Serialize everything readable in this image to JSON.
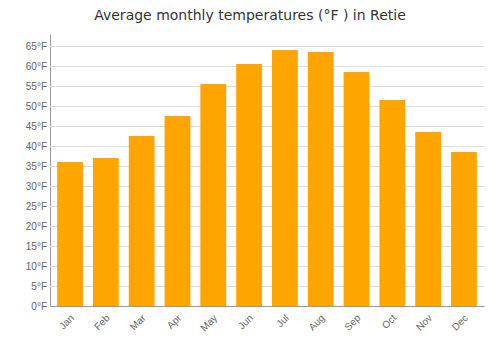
{
  "chart_data": {
    "type": "bar",
    "title": "Average monthly temperatures (°F ) in Retie",
    "categories": [
      "Jan",
      "Feb",
      "Mar",
      "Apr",
      "May",
      "Jun",
      "Jul",
      "Aug",
      "Sep",
      "Oct",
      "Nov",
      "Dec"
    ],
    "values": [
      36.0,
      37.0,
      42.5,
      47.5,
      55.5,
      60.5,
      64.0,
      63.5,
      58.5,
      51.5,
      43.5,
      38.5
    ],
    "color": "#FFA500",
    "ylim": [
      0,
      68
    ],
    "yticks": [
      {
        "value": 0,
        "label": "0°F"
      },
      {
        "value": 5,
        "label": "5°F"
      },
      {
        "value": 10,
        "label": "10°F"
      },
      {
        "value": 15,
        "label": "15°F"
      },
      {
        "value": 20,
        "label": "20°F"
      },
      {
        "value": 25,
        "label": "25°F"
      },
      {
        "value": 30,
        "label": "30°F"
      },
      {
        "value": 35,
        "label": "35°F"
      },
      {
        "value": 40,
        "label": "40°F"
      },
      {
        "value": 45,
        "label": "45°F"
      },
      {
        "value": 50,
        "label": "50°F"
      },
      {
        "value": 55,
        "label": "55°F"
      },
      {
        "value": 60,
        "label": "60°F"
      },
      {
        "value": 65,
        "label": "65°F"
      }
    ],
    "grid": true
  }
}
